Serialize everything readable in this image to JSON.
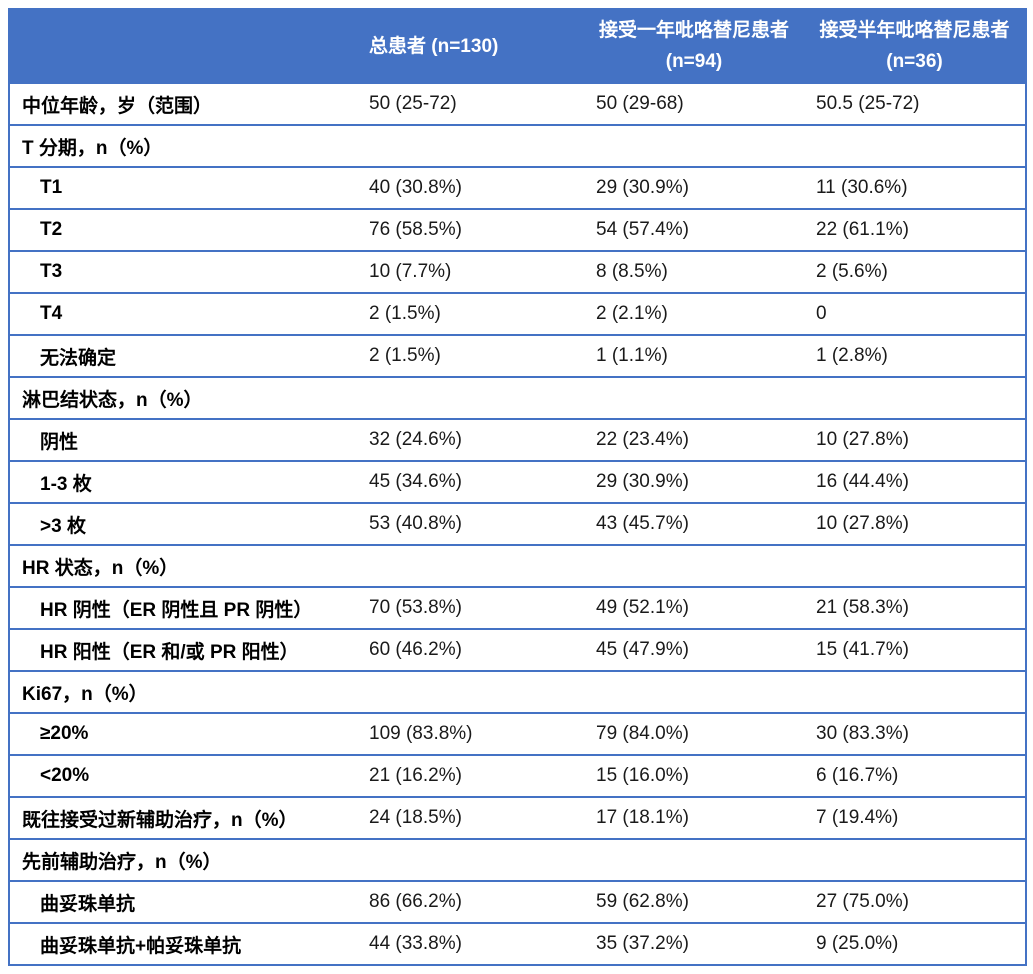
{
  "colors": {
    "header_bg": "#4472C4",
    "border": "#4472C4",
    "header_text": "#FFFFFF",
    "label_text": "#000000",
    "value_text": "#1A1A1A"
  },
  "table": {
    "header": {
      "col_characteristic": "",
      "col_total": {
        "line1": "总患者 (n=130)",
        "line2": ""
      },
      "col_one_year": {
        "line1": "接受一年吡咯替尼患者",
        "line2": "(n=94)"
      },
      "col_half_year": {
        "line1": "接受半年吡咯替尼患者",
        "line2": "(n=36)"
      }
    },
    "rows": [
      {
        "type": "data",
        "indent": false,
        "label": "中位年龄，岁（范围）",
        "values": [
          "50 (25-72)",
          "50 (29-68)",
          "50.5 (25-72)"
        ]
      },
      {
        "type": "section",
        "indent": false,
        "label": "T 分期，n（%）",
        "values": []
      },
      {
        "type": "data",
        "indent": true,
        "label": "T1",
        "values": [
          "40 (30.8%)",
          "29 (30.9%)",
          "11 (30.6%)"
        ]
      },
      {
        "type": "data",
        "indent": true,
        "label": "T2",
        "values": [
          "76 (58.5%)",
          "54 (57.4%)",
          "22 (61.1%)"
        ]
      },
      {
        "type": "data",
        "indent": true,
        "label": "T3",
        "values": [
          "10 (7.7%)",
          "8 (8.5%)",
          "2 (5.6%)"
        ]
      },
      {
        "type": "data",
        "indent": true,
        "label": "T4",
        "values": [
          "2 (1.5%)",
          "2 (2.1%)",
          "0"
        ]
      },
      {
        "type": "data",
        "indent": true,
        "label": "无法确定",
        "values": [
          "2 (1.5%)",
          "1 (1.1%)",
          "1 (2.8%)"
        ]
      },
      {
        "type": "section",
        "indent": false,
        "label": "淋巴结状态，n（%）",
        "values": []
      },
      {
        "type": "data",
        "indent": true,
        "label": "阴性",
        "values": [
          "32 (24.6%)",
          "22 (23.4%)",
          "10 (27.8%)"
        ]
      },
      {
        "type": "data",
        "indent": true,
        "label": "1-3 枚",
        "values": [
          "45 (34.6%)",
          "29 (30.9%)",
          "16 (44.4%)"
        ]
      },
      {
        "type": "data",
        "indent": true,
        "label": ">3 枚",
        "values": [
          "53 (40.8%)",
          "43 (45.7%)",
          "10 (27.8%)"
        ]
      },
      {
        "type": "section",
        "indent": false,
        "label": "HR 状态，n（%）",
        "values": []
      },
      {
        "type": "data",
        "indent": true,
        "label": "HR 阴性（ER 阴性且 PR 阴性）",
        "values": [
          "70 (53.8%)",
          "49 (52.1%)",
          "21 (58.3%)"
        ]
      },
      {
        "type": "data",
        "indent": true,
        "label": "HR 阳性（ER 和/或 PR 阳性）",
        "values": [
          "60 (46.2%)",
          "45 (47.9%)",
          "15 (41.7%)"
        ]
      },
      {
        "type": "section",
        "indent": false,
        "label": "Ki67，n（%）",
        "values": []
      },
      {
        "type": "data",
        "indent": true,
        "label": "≥20%",
        "values": [
          "109 (83.8%)",
          "79 (84.0%)",
          "30 (83.3%)"
        ]
      },
      {
        "type": "data",
        "indent": true,
        "label": "<20%",
        "values": [
          "21 (16.2%)",
          "15 (16.0%)",
          "6 (16.7%)"
        ]
      },
      {
        "type": "data",
        "indent": false,
        "label": "既往接受过新辅助治疗，n（%）",
        "values": [
          "24 (18.5%)",
          "17 (18.1%)",
          "7 (19.4%)"
        ]
      },
      {
        "type": "section",
        "indent": false,
        "label": "先前辅助治疗，n（%）",
        "values": []
      },
      {
        "type": "data",
        "indent": true,
        "label": "曲妥珠单抗",
        "values": [
          "86 (66.2%)",
          "59 (62.8%)",
          "27 (75.0%)"
        ]
      },
      {
        "type": "data",
        "indent": true,
        "label": "曲妥珠单抗+帕妥珠单抗",
        "values": [
          "44 (33.8%)",
          "35 (37.2%)",
          "9 (25.0%)"
        ]
      }
    ]
  }
}
